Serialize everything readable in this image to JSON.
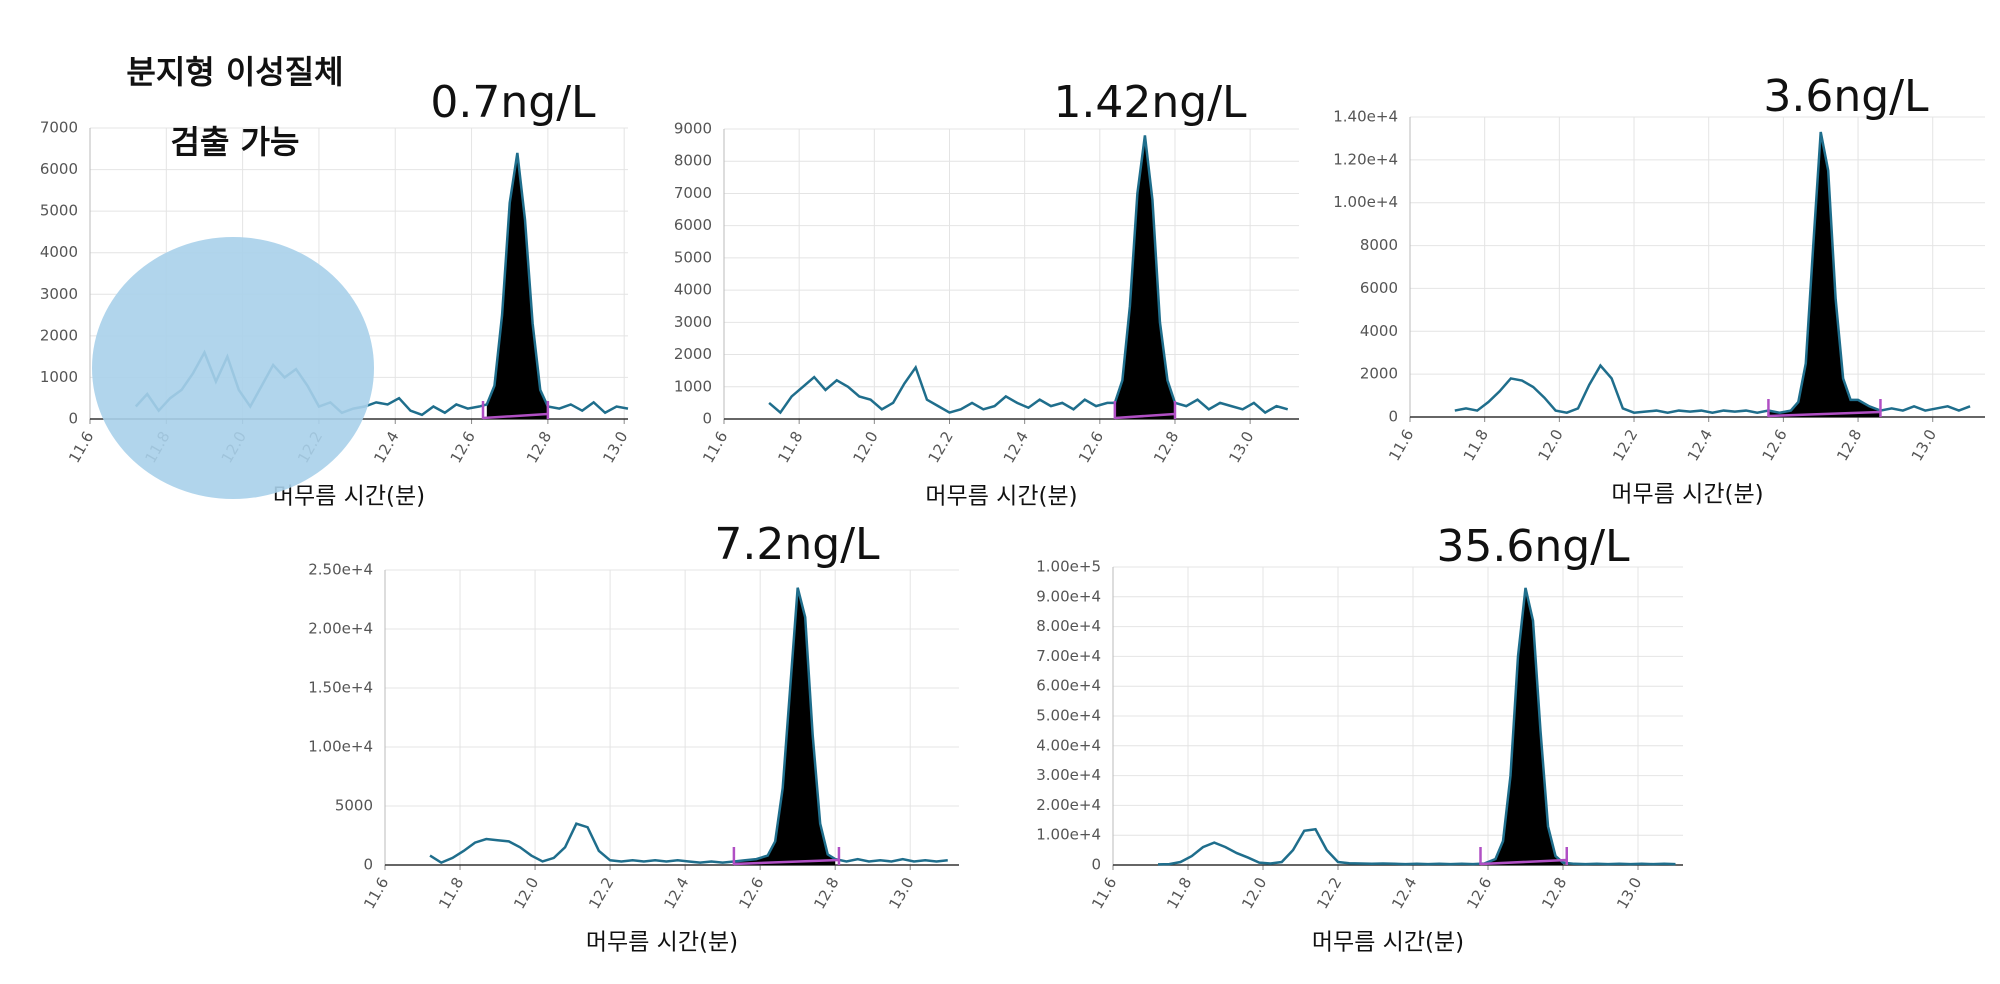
{
  "chart_data": [
    {
      "type": "line",
      "title": "0.7ng/L",
      "x_label": "머무름 시간(분)",
      "annotations": [
        "분지형 이성질체",
        "검출 가능"
      ],
      "x": [
        11.72,
        11.75,
        11.78,
        11.81,
        11.84,
        11.87,
        11.9,
        11.93,
        11.96,
        11.99,
        12.02,
        12.05,
        12.08,
        12.11,
        12.14,
        12.17,
        12.2,
        12.23,
        12.26,
        12.29,
        12.32,
        12.35,
        12.38,
        12.41,
        12.44,
        12.47,
        12.5,
        12.53,
        12.56,
        12.59,
        12.62,
        12.64,
        12.66,
        12.68,
        12.7,
        12.72,
        12.74,
        12.76,
        12.78,
        12.8,
        12.83,
        12.86,
        12.89,
        12.92,
        12.95,
        12.98,
        13.01
      ],
      "values": [
        300,
        600,
        200,
        500,
        700,
        1100,
        1600,
        900,
        1500,
        700,
        300,
        800,
        1300,
        1000,
        1200,
        800,
        300,
        400,
        150,
        250,
        300,
        400,
        350,
        500,
        200,
        100,
        300,
        150,
        350,
        250,
        300,
        350,
        800,
        2500,
        5200,
        6400,
        4800,
        2300,
        700,
        300,
        250,
        350,
        200,
        400,
        150,
        300,
        250
      ],
      "color": "#1f6e8c",
      "fill_color": "#000000",
      "integration": [
        12.63,
        12.8
      ],
      "integration_color": "#b04fc4",
      "xlim": [
        11.6,
        13.01
      ],
      "ylim": [
        0,
        7000
      ],
      "xticks": [
        11.6,
        11.8,
        {
          "value": 12,
          "label": "12.0"
        },
        12.2,
        12.4,
        12.6,
        12.8,
        {
          "value": 13,
          "label": "13.0"
        }
      ],
      "yticks": [
        0,
        1000,
        2000,
        3000,
        4000,
        5000,
        6000,
        7000
      ],
      "grid": true
    },
    {
      "type": "line",
      "title": "1.42ng/L",
      "x_label": "머무름 시간(분)",
      "x": [
        11.72,
        11.75,
        11.78,
        11.81,
        11.84,
        11.87,
        11.9,
        11.93,
        11.96,
        11.99,
        12.02,
        12.05,
        12.08,
        12.11,
        12.14,
        12.17,
        12.2,
        12.23,
        12.26,
        12.29,
        12.32,
        12.35,
        12.38,
        12.41,
        12.44,
        12.47,
        12.5,
        12.53,
        12.56,
        12.59,
        12.62,
        12.64,
        12.66,
        12.68,
        12.7,
        12.72,
        12.74,
        12.76,
        12.78,
        12.8,
        12.83,
        12.86,
        12.89,
        12.92,
        12.95,
        12.98,
        13.01,
        13.04,
        13.07,
        13.1
      ],
      "values": [
        500,
        200,
        700,
        1000,
        1300,
        900,
        1200,
        1000,
        700,
        600,
        300,
        500,
        1100,
        1600,
        600,
        400,
        200,
        300,
        500,
        300,
        400,
        700,
        500,
        350,
        600,
        400,
        500,
        300,
        600,
        400,
        500,
        500,
        1200,
        3500,
        7000,
        8800,
        6800,
        3000,
        1200,
        500,
        400,
        600,
        300,
        500,
        400,
        300,
        500,
        200,
        400,
        300
      ],
      "color": "#1f6e8c",
      "fill_color": "#000000",
      "integration": [
        12.64,
        12.8
      ],
      "integration_color": "#b04fc4",
      "xlim": [
        11.6,
        13.13
      ],
      "ylim": [
        0,
        9000
      ],
      "xticks": [
        11.6,
        11.8,
        {
          "value": 12,
          "label": "12.0"
        },
        12.2,
        12.4,
        12.6,
        12.8,
        {
          "value": 13,
          "label": "13.0"
        }
      ],
      "yticks": [
        0,
        1000,
        2000,
        3000,
        4000,
        5000,
        6000,
        7000,
        8000,
        9000
      ],
      "grid": true
    },
    {
      "type": "line",
      "title": "3.6ng/L",
      "x_label": "머무름 시간(분)",
      "x": [
        11.72,
        11.75,
        11.78,
        11.81,
        11.84,
        11.87,
        11.9,
        11.93,
        11.96,
        11.99,
        12.02,
        12.05,
        12.08,
        12.11,
        12.14,
        12.17,
        12.2,
        12.23,
        12.26,
        12.29,
        12.32,
        12.35,
        12.38,
        12.41,
        12.44,
        12.47,
        12.5,
        12.53,
        12.56,
        12.59,
        12.62,
        12.64,
        12.66,
        12.68,
        12.7,
        12.72,
        12.74,
        12.76,
        12.78,
        12.8,
        12.83,
        12.86,
        12.89,
        12.92,
        12.95,
        12.98,
        13.01,
        13.04,
        13.07,
        13.1
      ],
      "values": [
        300,
        400,
        300,
        700,
        1200,
        1800,
        1700,
        1400,
        900,
        300,
        200,
        400,
        1500,
        2400,
        1800,
        400,
        200,
        250,
        300,
        200,
        300,
        250,
        300,
        200,
        300,
        250,
        300,
        200,
        300,
        200,
        300,
        700,
        2500,
        8000,
        13300,
        11500,
        5500,
        1800,
        800,
        800,
        500,
        300,
        400,
        300,
        500,
        300,
        400,
        500,
        300,
        500
      ],
      "color": "#1f6e8c",
      "fill_color": "#000000",
      "integration": [
        12.56,
        12.86
      ],
      "integration_color": "#b04fc4",
      "xlim": [
        11.6,
        13.14
      ],
      "ylim": [
        0,
        14000
      ],
      "xticks": [
        11.6,
        11.8,
        {
          "value": 12,
          "label": "12.0"
        },
        12.2,
        12.4,
        12.6,
        12.8,
        {
          "value": 13,
          "label": "13.0"
        }
      ],
      "yticks": [
        0,
        2000,
        4000,
        6000,
        8000,
        {
          "value": 10000,
          "label": "1.00e+4"
        },
        {
          "value": 12000,
          "label": "1.20e+4"
        },
        {
          "value": 14000,
          "label": "1.40e+4"
        }
      ],
      "grid": true
    },
    {
      "type": "line",
      "title": "7.2ng/L",
      "x_label": "머무름 시간(분)",
      "x": [
        11.72,
        11.75,
        11.78,
        11.81,
        11.84,
        11.87,
        11.9,
        11.93,
        11.96,
        11.99,
        12.02,
        12.05,
        12.08,
        12.11,
        12.14,
        12.17,
        12.2,
        12.23,
        12.26,
        12.29,
        12.32,
        12.35,
        12.38,
        12.41,
        12.44,
        12.47,
        12.5,
        12.53,
        12.56,
        12.59,
        12.62,
        12.64,
        12.66,
        12.68,
        12.7,
        12.72,
        12.74,
        12.76,
        12.78,
        12.8,
        12.83,
        12.86,
        12.89,
        12.92,
        12.95,
        12.98,
        13.01,
        13.04,
        13.07,
        13.1
      ],
      "values": [
        800,
        200,
        600,
        1200,
        1900,
        2200,
        2100,
        2000,
        1500,
        800,
        300,
        600,
        1500,
        3500,
        3200,
        1200,
        400,
        300,
        400,
        300,
        400,
        300,
        400,
        300,
        200,
        300,
        200,
        300,
        400,
        500,
        800,
        2000,
        6500,
        15000,
        23500,
        21000,
        11000,
        3500,
        900,
        500,
        300,
        500,
        300,
        400,
        300,
        500,
        300,
        400,
        300,
        400
      ],
      "color": "#1f6e8c",
      "fill_color": "#000000",
      "integration": [
        12.53,
        12.81
      ],
      "integration_color": "#b04fc4",
      "xlim": [
        11.6,
        13.13
      ],
      "ylim": [
        0,
        25000
      ],
      "xticks": [
        11.6,
        11.8,
        {
          "value": 12,
          "label": "12.0"
        },
        12.2,
        12.4,
        12.6,
        12.8,
        {
          "value": 13,
          "label": "13.0"
        }
      ],
      "yticks": [
        0,
        5000,
        {
          "value": 10000,
          "label": "1.00e+4"
        },
        {
          "value": 15000,
          "label": "1.50e+4"
        },
        {
          "value": 20000,
          "label": "2.00e+4"
        },
        {
          "value": 25000,
          "label": "2.50e+4"
        }
      ],
      "grid": true
    },
    {
      "type": "line",
      "title": "35.6ng/L",
      "x_label": "머무름 시간(분)",
      "x": [
        11.72,
        11.75,
        11.78,
        11.81,
        11.84,
        11.87,
        11.9,
        11.93,
        11.96,
        11.99,
        12.02,
        12.05,
        12.08,
        12.11,
        12.14,
        12.17,
        12.2,
        12.23,
        12.26,
        12.29,
        12.32,
        12.35,
        12.38,
        12.41,
        12.44,
        12.47,
        12.5,
        12.53,
        12.56,
        12.59,
        12.62,
        12.64,
        12.66,
        12.68,
        12.7,
        12.72,
        12.74,
        12.76,
        12.78,
        12.8,
        12.83,
        12.86,
        12.89,
        12.92,
        12.95,
        12.98,
        13.01,
        13.04,
        13.07,
        13.1
      ],
      "values": [
        200,
        300,
        1000,
        3000,
        6000,
        7500,
        6000,
        4000,
        2500,
        800,
        500,
        1000,
        5000,
        11500,
        12000,
        5000,
        1000,
        600,
        500,
        400,
        500,
        400,
        300,
        400,
        300,
        400,
        300,
        400,
        300,
        500,
        2000,
        8000,
        30000,
        70000,
        93000,
        82000,
        45000,
        13000,
        3000,
        800,
        400,
        300,
        400,
        300,
        400,
        300,
        400,
        300,
        400,
        300
      ],
      "color": "#1f6e8c",
      "fill_color": "#000000",
      "integration": [
        12.58,
        12.81
      ],
      "integration_color": "#b04fc4",
      "xlim": [
        11.6,
        13.12
      ],
      "ylim": [
        0,
        100000
      ],
      "xticks": [
        11.6,
        11.8,
        {
          "value": 12,
          "label": "12.0"
        },
        12.2,
        12.4,
        12.6,
        12.8,
        {
          "value": 13,
          "label": "13.0"
        }
      ],
      "yticks": [
        0,
        {
          "value": 10000,
          "label": "1.00e+4"
        },
        {
          "value": 20000,
          "label": "2.00e+4"
        },
        {
          "value": 30000,
          "label": "3.00e+4"
        },
        {
          "value": 40000,
          "label": "4.00e+4"
        },
        {
          "value": 50000,
          "label": "5.00e+4"
        },
        {
          "value": 60000,
          "label": "6.00e+4"
        },
        {
          "value": 70000,
          "label": "7.00e+4"
        },
        {
          "value": 80000,
          "label": "8.00e+4"
        },
        {
          "value": 90000,
          "label": "9.00e+4"
        },
        {
          "value": 100000,
          "label": "1.00e+5"
        }
      ],
      "grid": true
    }
  ]
}
